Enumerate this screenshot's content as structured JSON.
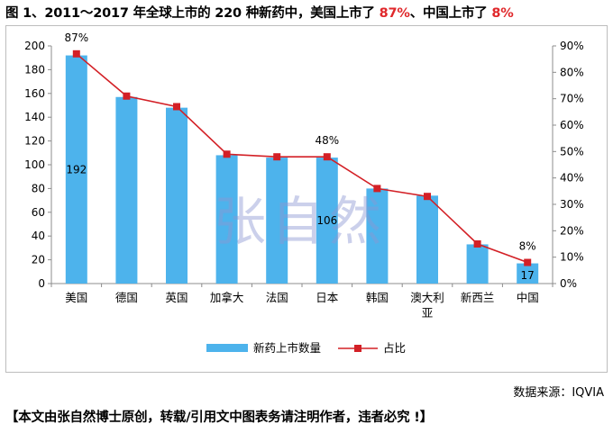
{
  "title": {
    "prefix": "图 1、2011～2017 年全球上市的 220 种新药中，美国上市了 ",
    "us_pct": "87%",
    "middle": "、中国上市了 ",
    "cn_pct": "8%"
  },
  "watermark": "张自然",
  "source": "数据来源：IQVIA",
  "footer_note": "【本文由张自然博士原创，转载/引用文中图表务请注明作者，违者必究 !】",
  "colors": {
    "bar": "#4db3ec",
    "line": "#d32026",
    "marker": "#d32026",
    "highlight": "#e0282b"
  },
  "chart_data": {
    "type": "bar",
    "categories": [
      "美国",
      "德国",
      "英国",
      "加拿大",
      "法国",
      "日本",
      "韩国",
      "澳大利亚",
      "新西兰",
      "中国"
    ],
    "category_lines": [
      [
        "美国"
      ],
      [
        "德国"
      ],
      [
        "英国"
      ],
      [
        "加拿大"
      ],
      [
        "法国"
      ],
      [
        "日本"
      ],
      [
        "韩国"
      ],
      [
        "澳大利",
        "亚"
      ],
      [
        "新西兰"
      ],
      [
        "中国"
      ]
    ],
    "series": [
      {
        "name": "新药上市数量",
        "type": "bar",
        "axis": "left",
        "values": [
          192,
          157,
          148,
          108,
          106,
          106,
          80,
          74,
          33,
          17
        ]
      },
      {
        "name": "占比",
        "type": "line",
        "axis": "right",
        "values": [
          87,
          71,
          67,
          49,
          48,
          48,
          36,
          33,
          15,
          8
        ]
      }
    ],
    "left_axis": {
      "ylim": [
        0,
        200
      ],
      "ticks": [
        0,
        20,
        40,
        60,
        80,
        100,
        120,
        140,
        160,
        180,
        200
      ]
    },
    "right_axis": {
      "ylim": [
        0,
        90
      ],
      "ticks": [
        "0%",
        "10%",
        "20%",
        "30%",
        "40%",
        "50%",
        "60%",
        "70%",
        "80%",
        "90%"
      ]
    },
    "bar_labels": [
      {
        "index": 0,
        "text": "192"
      },
      {
        "index": 5,
        "text": "106"
      },
      {
        "index": 9,
        "text": "17"
      }
    ],
    "line_labels": [
      {
        "index": 0,
        "text": "87%"
      },
      {
        "index": 5,
        "text": "48%"
      },
      {
        "index": 9,
        "text": "8%"
      }
    ],
    "legend": {
      "placement": "bottom-center",
      "items": [
        "新药上市数量",
        "占比"
      ]
    },
    "grid": false
  }
}
